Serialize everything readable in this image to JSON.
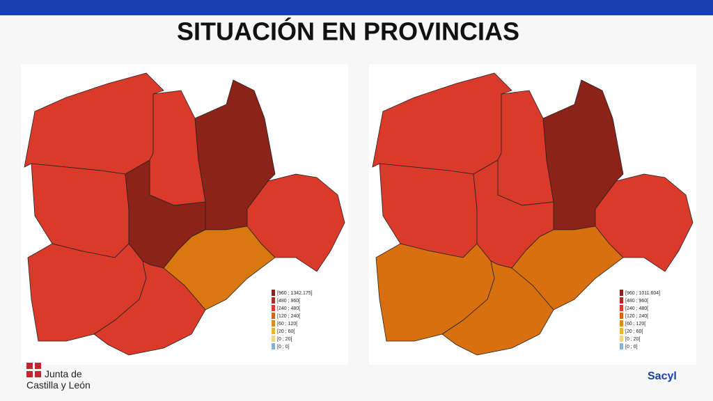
{
  "header": {
    "title": "SITUACIÓN EN PROVINCIAS"
  },
  "maps": [
    {
      "region_colors": [
        "#d93a2a",
        "#d93a2a",
        "#8b2318",
        "#d93a2a",
        "#d93a2a",
        "#8b2318",
        "#d9780f",
        "#d93a2a",
        "#d93a2a"
      ],
      "legend": [
        {
          "label": "[960 ; 1342.175]",
          "color": "#8b2318"
        },
        {
          "label": "[480 ; 960[",
          "color": "#b22b1d"
        },
        {
          "label": "[240 ; 480[",
          "color": "#d93a2a"
        },
        {
          "label": "[120 ; 240[",
          "color": "#d9620f"
        },
        {
          "label": "[60 ; 120[",
          "color": "#e08a12"
        },
        {
          "label": "[20 ; 60[",
          "color": "#f0b030"
        },
        {
          "label": "[0 ; 20[",
          "color": "#f5d57a"
        },
        {
          "label": "[0 ; 0]",
          "color": "#7fb4e0"
        }
      ]
    },
    {
      "region_colors": [
        "#d93a2a",
        "#d93a2a",
        "#8b2318",
        "#d93a2a",
        "#d93a2a",
        "#d93a2a",
        "#d9700f",
        "#d9700f",
        "#d9700f"
      ],
      "legend": [
        {
          "label": "[960 ; 1011.604]",
          "color": "#8b2318"
        },
        {
          "label": "[480 ; 960[",
          "color": "#b22b1d"
        },
        {
          "label": "[240 ; 480[",
          "color": "#d93a2a"
        },
        {
          "label": "[120 ; 240[",
          "color": "#d9620f"
        },
        {
          "label": "[60 ; 120[",
          "color": "#e08a12"
        },
        {
          "label": "[20 ; 60[",
          "color": "#f0b030"
        },
        {
          "label": "[0 ; 20[",
          "color": "#f5d57a"
        },
        {
          "label": "[0 ; 0]",
          "color": "#7fb4e0"
        }
      ]
    }
  ],
  "footer": {
    "logo_left": [
      "Junta de",
      "Castilla y León"
    ],
    "logo_right": "Sacyl"
  }
}
